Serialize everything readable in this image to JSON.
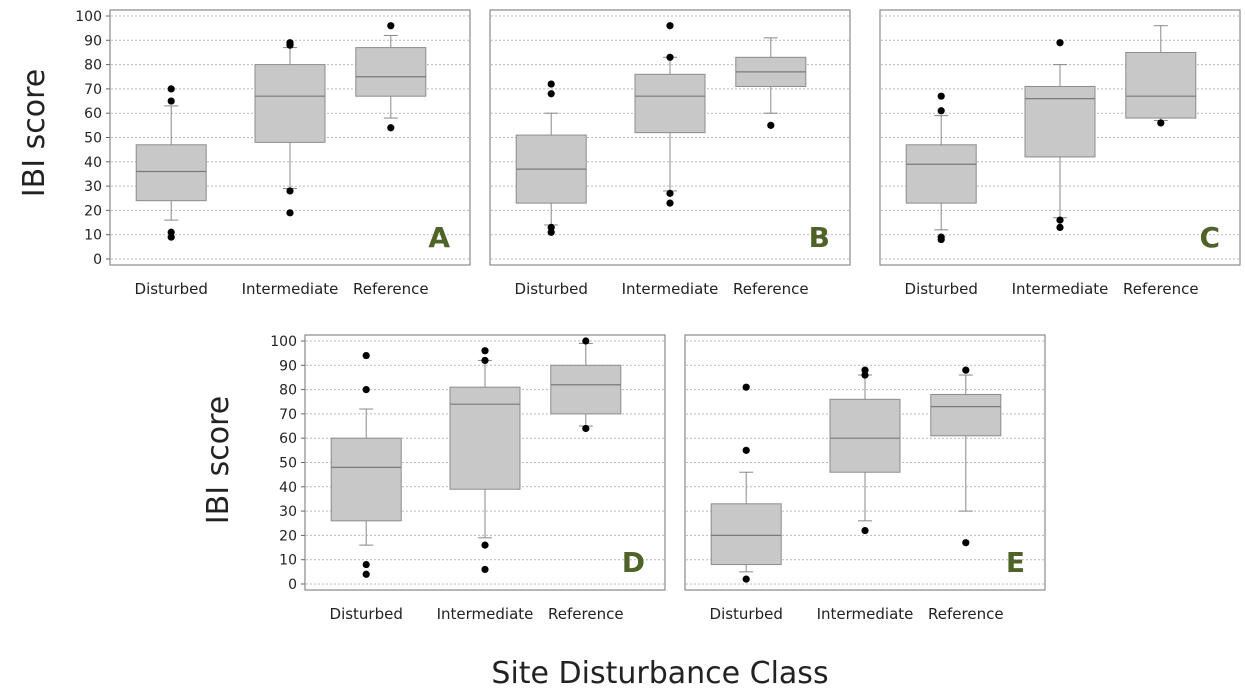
{
  "figure": {
    "ylabel": "IBI score",
    "xlabel": "Site Disturbance Class"
  },
  "chart_data": [
    {
      "type": "boxplot",
      "panel_label": "A",
      "categories": [
        "Disturbed",
        "Intermediate",
        "Reference"
      ],
      "ylim": [
        0,
        100
      ],
      "yticks": [
        0,
        10,
        20,
        30,
        40,
        50,
        60,
        70,
        80,
        90,
        100
      ],
      "grid": true,
      "boxes": [
        {
          "q1": 24,
          "median": 36,
          "q3": 47,
          "whisker_low": 16,
          "whisker_high": 63,
          "outliers": [
            11,
            9,
            65,
            70
          ]
        },
        {
          "q1": 48,
          "median": 67,
          "q3": 80,
          "whisker_low": 29,
          "whisker_high": 87,
          "outliers": [
            28,
            19,
            88,
            89
          ]
        },
        {
          "q1": 67,
          "median": 75,
          "q3": 87,
          "whisker_low": 58,
          "whisker_high": 92,
          "outliers": [
            54,
            96
          ]
        }
      ]
    },
    {
      "type": "boxplot",
      "panel_label": "B",
      "categories": [
        "Disturbed",
        "Intermediate",
        "Reference"
      ],
      "ylim": [
        0,
        100
      ],
      "grid": true,
      "boxes": [
        {
          "q1": 23,
          "median": 37,
          "q3": 51,
          "whisker_low": 14,
          "whisker_high": 60,
          "outliers": [
            13,
            11,
            68,
            72
          ]
        },
        {
          "q1": 52,
          "median": 67,
          "q3": 76,
          "whisker_low": 28,
          "whisker_high": 83,
          "outliers": [
            27,
            23,
            83,
            96
          ]
        },
        {
          "q1": 71,
          "median": 77,
          "q3": 83,
          "whisker_low": 60,
          "whisker_high": 91,
          "outliers": [
            55
          ]
        }
      ]
    },
    {
      "type": "boxplot",
      "panel_label": "C",
      "categories": [
        "Disturbed",
        "Intermediate",
        "Reference"
      ],
      "ylim": [
        0,
        100
      ],
      "grid": true,
      "boxes": [
        {
          "q1": 23,
          "median": 39,
          "q3": 47,
          "whisker_low": 12,
          "whisker_high": 59,
          "outliers": [
            9,
            8,
            61,
            67
          ]
        },
        {
          "q1": 42,
          "median": 66,
          "q3": 71,
          "whisker_low": 17,
          "whisker_high": 80,
          "outliers": [
            16,
            13,
            89
          ]
        },
        {
          "q1": 58,
          "median": 67,
          "q3": 85,
          "whisker_low": 57,
          "whisker_high": 96,
          "outliers": [
            56
          ]
        }
      ]
    },
    {
      "type": "boxplot",
      "panel_label": "D",
      "categories": [
        "Disturbed",
        "Intermediate",
        "Reference"
      ],
      "ylim": [
        0,
        100
      ],
      "yticks": [
        0,
        10,
        20,
        30,
        40,
        50,
        60,
        70,
        80,
        90,
        100
      ],
      "grid": true,
      "boxes": [
        {
          "q1": 26,
          "median": 48,
          "q3": 60,
          "whisker_low": 16,
          "whisker_high": 72,
          "outliers": [
            8,
            4,
            80,
            94
          ]
        },
        {
          "q1": 39,
          "median": 74,
          "q3": 81,
          "whisker_low": 19,
          "whisker_high": 92,
          "outliers": [
            16,
            6,
            92,
            96
          ]
        },
        {
          "q1": 70,
          "median": 82,
          "q3": 90,
          "whisker_low": 65,
          "whisker_high": 99,
          "outliers": [
            64,
            100
          ]
        }
      ]
    },
    {
      "type": "boxplot",
      "panel_label": "E",
      "categories": [
        "Disturbed",
        "Intermediate",
        "Reference"
      ],
      "ylim": [
        0,
        100
      ],
      "grid": true,
      "boxes": [
        {
          "q1": 8,
          "median": 20,
          "q3": 33,
          "whisker_low": 5,
          "whisker_high": 46,
          "outliers": [
            2,
            55,
            81
          ]
        },
        {
          "q1": 46,
          "median": 60,
          "q3": 76,
          "whisker_low": 26,
          "whisker_high": 86,
          "outliers": [
            22,
            86,
            88
          ]
        },
        {
          "q1": 61,
          "median": 73,
          "q3": 78,
          "whisker_low": 30,
          "whisker_high": 86,
          "outliers": [
            17,
            88
          ]
        }
      ]
    }
  ]
}
